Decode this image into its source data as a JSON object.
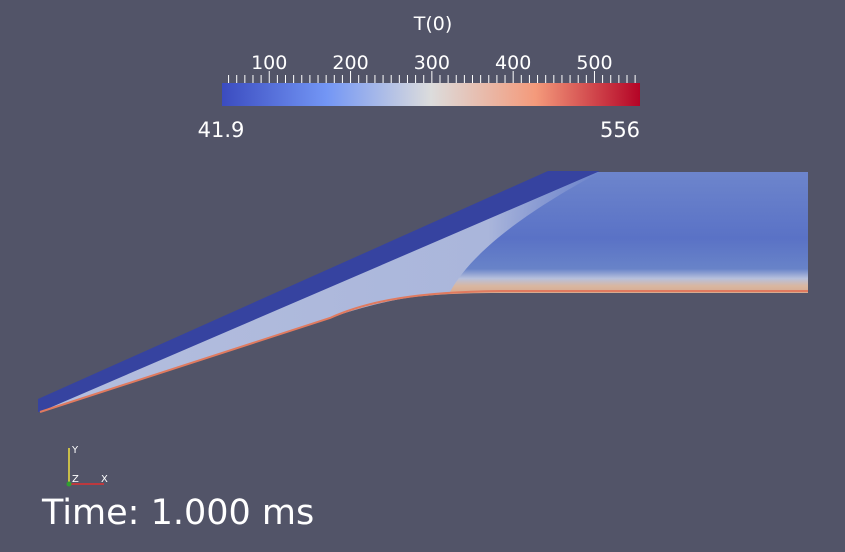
{
  "colorbar": {
    "title": "T(0)",
    "range": [
      41.9,
      556
    ],
    "min_label": "41.9",
    "max_label": "556",
    "major_ticks": [
      {
        "value": 100,
        "label": "100"
      },
      {
        "value": 200,
        "label": "200"
      },
      {
        "value": 300,
        "label": "300"
      },
      {
        "value": 400,
        "label": "400"
      },
      {
        "value": 500,
        "label": "500"
      }
    ],
    "minor_tick_step": 10,
    "colors": [
      "#3b4cc0",
      "#dddddd",
      "#b40426"
    ]
  },
  "field": {
    "name": "T(0)",
    "upper_wall_color": "#3643a0",
    "core_color": "#a9b3d8",
    "freestream_color": "#5f78c8",
    "boundary_layer_color": "#d3ac98",
    "hot_wall_color": "#e07a5f"
  },
  "axes_triad": {
    "x_label": "X",
    "y_label": "Y",
    "z_label": "Z",
    "x_color": "#e03030",
    "y_color": "#f0e040",
    "z_color": "#30a030"
  },
  "time": {
    "label": "Time: 1.000 ms",
    "value": 1.0,
    "unit": "ms"
  }
}
